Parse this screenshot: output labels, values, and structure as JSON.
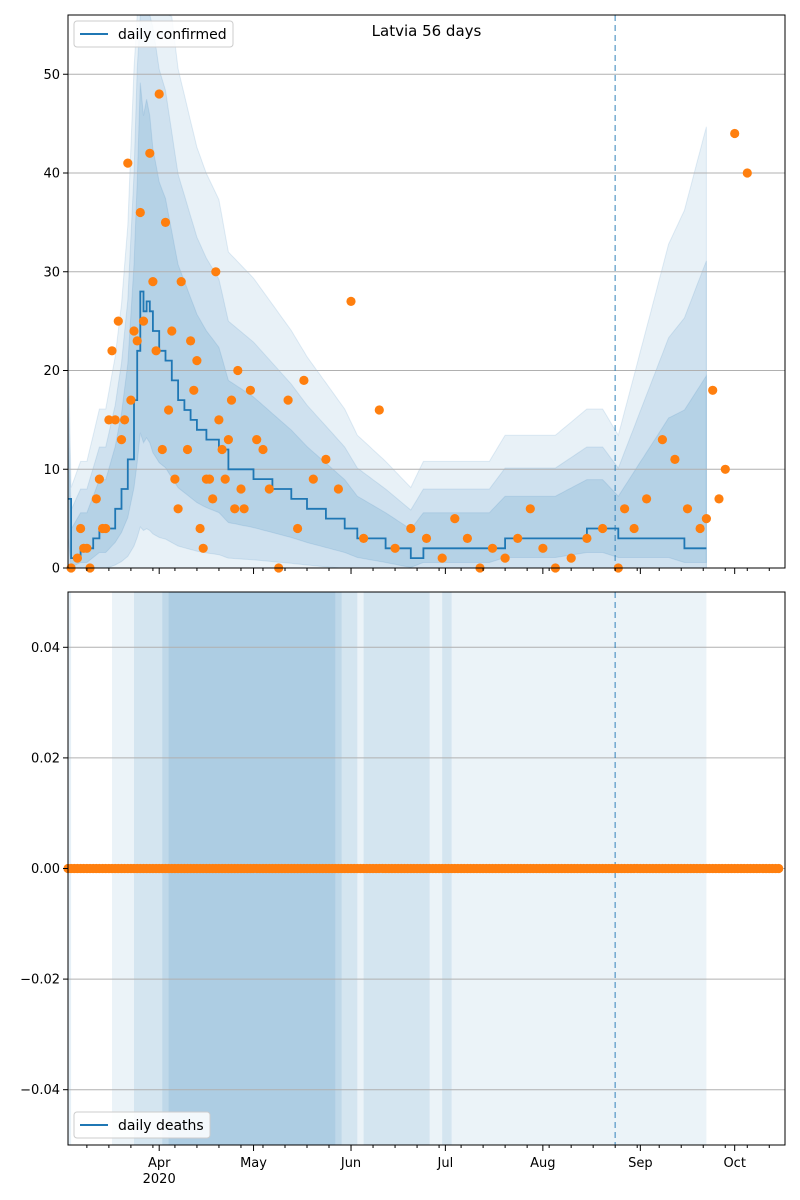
{
  "chart_data": [
    {
      "type": "line",
      "title": "Latvia 56 days",
      "xlabel": "",
      "ylabel": "",
      "xlim": [
        "2020-03-03",
        "2020-10-17"
      ],
      "ylim": [
        0,
        56
      ],
      "yticks": [
        0,
        10,
        20,
        30,
        40,
        50
      ],
      "xtick_labels": [
        {
          "date": "2020-04-01",
          "label": "Apr",
          "sublabel": "2020"
        },
        {
          "date": "2020-05-01",
          "label": "May"
        },
        {
          "date": "2020-06-01",
          "label": "Jun"
        },
        {
          "date": "2020-07-01",
          "label": "Jul"
        },
        {
          "date": "2020-08-01",
          "label": "Aug"
        },
        {
          "date": "2020-09-01",
          "label": "Sep"
        },
        {
          "date": "2020-10-01",
          "label": "Oct"
        }
      ],
      "grid": "horizontal",
      "legend_position": "top-left",
      "vline_date": "2020-08-24",
      "colors": {
        "line": "#1f77b4",
        "points": "#ff7f0e",
        "band": "#1f77b4",
        "vline": "#1f77b4"
      },
      "series": [
        {
          "name": "daily confirmed",
          "type": "line",
          "x": [
            "2020-03-03",
            "2020-03-04",
            "2020-03-07",
            "2020-03-09",
            "2020-03-11",
            "2020-03-13",
            "2020-03-15",
            "2020-03-18",
            "2020-03-20",
            "2020-03-22",
            "2020-03-24",
            "2020-03-25",
            "2020-03-26",
            "2020-03-27",
            "2020-03-28",
            "2020-03-29",
            "2020-03-30",
            "2020-04-01",
            "2020-04-03",
            "2020-04-05",
            "2020-04-07",
            "2020-04-09",
            "2020-04-11",
            "2020-04-13",
            "2020-04-16",
            "2020-04-20",
            "2020-04-23",
            "2020-05-01",
            "2020-05-07",
            "2020-05-13",
            "2020-05-18",
            "2020-05-24",
            "2020-05-30",
            "2020-06-03",
            "2020-06-12",
            "2020-06-20",
            "2020-06-24",
            "2020-07-05",
            "2020-07-10",
            "2020-07-15",
            "2020-07-20",
            "2020-07-28",
            "2020-08-05",
            "2020-08-15",
            "2020-08-20",
            "2020-08-25",
            "2020-09-05",
            "2020-09-10",
            "2020-09-15",
            "2020-09-22"
          ],
          "y": [
            7,
            1,
            2,
            2,
            3,
            4,
            4,
            6,
            8,
            11,
            17,
            22,
            28,
            26,
            27,
            26,
            24,
            22,
            21,
            19,
            17,
            16,
            15,
            14,
            13,
            12,
            10,
            9,
            8,
            7,
            6,
            5,
            4,
            3,
            2,
            1,
            2,
            2,
            2,
            2,
            3,
            3,
            3,
            4,
            4,
            3,
            3,
            3,
            2,
            2
          ]
        },
        {
          "name": "",
          "type": "scatter",
          "x": [
            "2020-03-04",
            "2020-03-06",
            "2020-03-07",
            "2020-03-08",
            "2020-03-09",
            "2020-03-10",
            "2020-03-12",
            "2020-03-13",
            "2020-03-14",
            "2020-03-15",
            "2020-03-16",
            "2020-03-17",
            "2020-03-18",
            "2020-03-19",
            "2020-03-20",
            "2020-03-21",
            "2020-03-22",
            "2020-03-23",
            "2020-03-24",
            "2020-03-25",
            "2020-03-26",
            "2020-03-27",
            "2020-03-29",
            "2020-03-30",
            "2020-03-31",
            "2020-04-01",
            "2020-04-02",
            "2020-04-03",
            "2020-04-04",
            "2020-04-05",
            "2020-04-06",
            "2020-04-07",
            "2020-04-08",
            "2020-04-10",
            "2020-04-11",
            "2020-04-12",
            "2020-04-13",
            "2020-04-14",
            "2020-04-15",
            "2020-04-16",
            "2020-04-17",
            "2020-04-18",
            "2020-04-19",
            "2020-04-20",
            "2020-04-21",
            "2020-04-22",
            "2020-04-23",
            "2020-04-24",
            "2020-04-25",
            "2020-04-26",
            "2020-04-27",
            "2020-04-28",
            "2020-04-30",
            "2020-05-02",
            "2020-05-04",
            "2020-05-06",
            "2020-05-09",
            "2020-05-12",
            "2020-05-15",
            "2020-05-17",
            "2020-05-20",
            "2020-05-24",
            "2020-05-28",
            "2020-06-01",
            "2020-06-05",
            "2020-06-10",
            "2020-06-15",
            "2020-06-20",
            "2020-06-25",
            "2020-06-30",
            "2020-07-04",
            "2020-07-08",
            "2020-07-12",
            "2020-07-16",
            "2020-07-20",
            "2020-07-24",
            "2020-07-28",
            "2020-08-01",
            "2020-08-05",
            "2020-08-10",
            "2020-08-15",
            "2020-08-20",
            "2020-08-25",
            "2020-08-27",
            "2020-08-30",
            "2020-09-03",
            "2020-09-08",
            "2020-09-12",
            "2020-09-16",
            "2020-09-20",
            "2020-09-22",
            "2020-09-24",
            "2020-09-26",
            "2020-09-28",
            "2020-10-01",
            "2020-10-05"
          ],
          "y": [
            0,
            1,
            4,
            2,
            2,
            0,
            7,
            9,
            4,
            4,
            15,
            22,
            15,
            25,
            13,
            15,
            41,
            17,
            24,
            23,
            36,
            25,
            42,
            29,
            22,
            48,
            12,
            35,
            16,
            24,
            9,
            6,
            29,
            12,
            23,
            18,
            21,
            4,
            2,
            9,
            9,
            7,
            30,
            15,
            12,
            9,
            13,
            17,
            6,
            20,
            8,
            6,
            18,
            13,
            12,
            8,
            0,
            17,
            4,
            19,
            9,
            11,
            8,
            27,
            3,
            16,
            2,
            4,
            3,
            1,
            5,
            3,
            0,
            2,
            1,
            3,
            6,
            2,
            0,
            1,
            3,
            4,
            0,
            6,
            4,
            7,
            13,
            11,
            6,
            4,
            5,
            18,
            7,
            10,
            44,
            40
          ]
        }
      ]
    },
    {
      "type": "line",
      "title": "",
      "xlabel": "",
      "ylabel": "",
      "xlim": [
        "2020-03-03",
        "2020-10-17"
      ],
      "ylim": [
        -0.05,
        0.05
      ],
      "yticks": [
        -0.04,
        -0.02,
        0.0,
        0.02,
        0.04
      ],
      "ytick_labels": [
        "−0.04",
        "−0.02",
        "0.00",
        "0.02",
        "0.04"
      ],
      "xtick_labels": [
        {
          "date": "2020-04-01",
          "label": "Apr",
          "sublabel": "2020"
        },
        {
          "date": "2020-05-01",
          "label": "May"
        },
        {
          "date": "2020-06-01",
          "label": "Jun"
        },
        {
          "date": "2020-07-01",
          "label": "Jul"
        },
        {
          "date": "2020-08-01",
          "label": "Aug"
        },
        {
          "date": "2020-09-01",
          "label": "Sep"
        },
        {
          "date": "2020-10-01",
          "label": "Oct"
        }
      ],
      "grid": "horizontal",
      "legend_position": "bottom-left",
      "vline_date": "2020-08-24",
      "shaded_periods": [
        [
          "2020-03-03",
          "2020-03-04"
        ],
        [
          "2020-03-17",
          "2020-09-22"
        ],
        [
          "2020-03-24",
          "2020-06-03"
        ],
        [
          "2020-04-02",
          "2020-05-29"
        ],
        [
          "2020-04-04",
          "2020-05-27"
        ],
        [
          "2020-06-05",
          "2020-06-26"
        ],
        [
          "2020-06-30",
          "2020-07-03"
        ]
      ],
      "colors": {
        "line": "#1f77b4",
        "points": "#ff7f0e",
        "band": "#1f77b4",
        "vline": "#1f77b4"
      },
      "series": [
        {
          "name": "daily deaths",
          "type": "line",
          "x": [
            "2020-03-03",
            "2020-09-22"
          ],
          "y": [
            0,
            0
          ]
        },
        {
          "name": "",
          "type": "scatter",
          "y_constant": 0,
          "x_range": [
            "2020-03-03",
            "2020-10-15"
          ]
        }
      ]
    }
  ]
}
